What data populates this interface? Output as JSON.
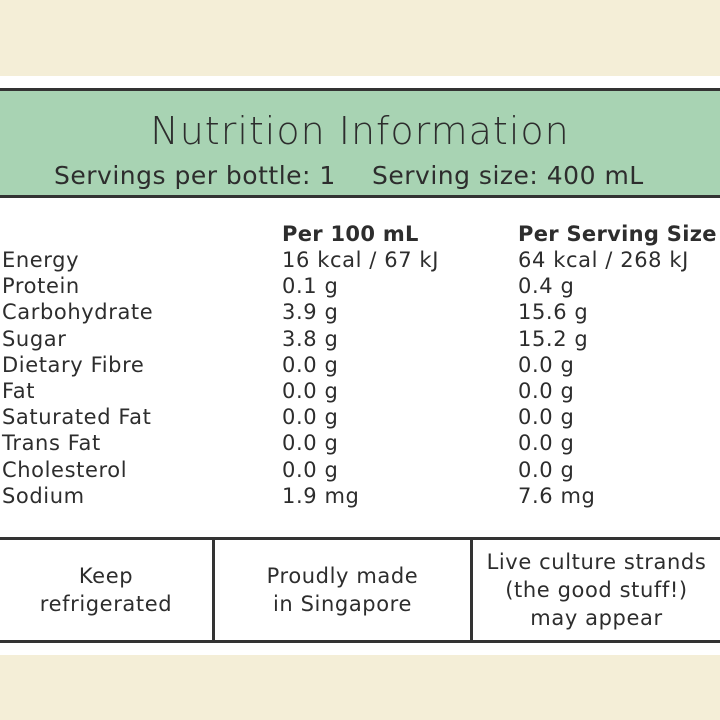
{
  "header": {
    "title": "Nutrition Information",
    "servings_per_bottle": "Servings per bottle: 1",
    "serving_size": "Serving size: 400 mL"
  },
  "table": {
    "col_per_100": "Per 100 mL",
    "col_per_serving": "Per Serving Size",
    "rows": [
      {
        "name": "Energy",
        "per100": "16 kcal / 67 kJ",
        "perServing": "64 kcal / 268 kJ"
      },
      {
        "name": "Protein",
        "per100": "0.1 g",
        "perServing": "0.4 g"
      },
      {
        "name": "Carbohydrate",
        "per100": "3.9 g",
        "perServing": "15.6 g"
      },
      {
        "name": "Sugar",
        "per100": "3.8 g",
        "perServing": "15.2 g"
      },
      {
        "name": "Dietary Fibre",
        "per100": "0.0 g",
        "perServing": "0.0 g"
      },
      {
        "name": "Fat",
        "per100": "0.0 g",
        "perServing": "0.0 g"
      },
      {
        "name": "Saturated Fat",
        "per100": "0.0 g",
        "perServing": "0.0 g"
      },
      {
        "name": "Trans Fat",
        "per100": "0.0 g",
        "perServing": "0.0 g"
      },
      {
        "name": "Cholesterol",
        "per100": "0.0 g",
        "perServing": "0.0 g"
      },
      {
        "name": "Sodium",
        "per100": "1.9 mg",
        "perServing": "7.6 mg"
      }
    ]
  },
  "footer": {
    "cell1": "Keep\nrefrigerated",
    "cell2": "Proudly made\nin Singapore",
    "cell3": "Live culture strands\n(the good stuff!)\nmay appear"
  },
  "colors": {
    "header_green": "#a8d3b3",
    "background_cream": "#f4eed7",
    "text": "#2d2d2d"
  }
}
